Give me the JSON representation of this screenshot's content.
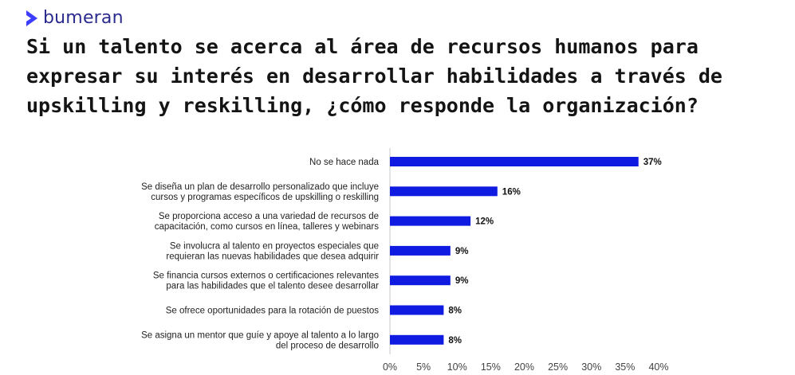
{
  "brand": {
    "name": "bumeran",
    "accent": "#3d3dff",
    "logo_icon": "chevron-logo-icon"
  },
  "title": "Si un talento se acerca al área de recursos humanos para expresar su interés en desarrollar habilidades a través de upskilling y reskilling, ¿cómo responde la organización?",
  "chart_data": {
    "type": "bar",
    "orientation": "horizontal",
    "bar_color": "#0f1be0",
    "categories": [
      [
        "No se hace nada"
      ],
      [
        "Se diseña un plan de desarrollo personalizado que incluye",
        "cursos y programas específicos de upskilling o reskilling"
      ],
      [
        "Se proporciona acceso a una variedad de recursos de",
        "capacitación, como cursos en línea, talleres y webinars"
      ],
      [
        "Se involucra al talento en proyectos especiales que",
        "requieran las nuevas habilidades que desea adquirir"
      ],
      [
        "Se financia cursos externos o certificaciones relevantes",
        "para las habilidades que el talento desee desarrollar"
      ],
      [
        "Se ofrece oportunidades para la rotación de puestos"
      ],
      [
        "Se asigna un mentor que guíe y apoye al talento a lo largo",
        "del proceso de desarrollo"
      ]
    ],
    "values": [
      37,
      16,
      12,
      9,
      9,
      8,
      8
    ],
    "value_labels": [
      "37%",
      "16%",
      "12%",
      "9%",
      "9%",
      "8%",
      "8%"
    ],
    "xlim": [
      0,
      40
    ],
    "xticks": [
      "0%",
      "5%",
      "10%",
      "15%",
      "20%",
      "25%",
      "30%",
      "35%",
      "40%"
    ],
    "grid": false,
    "legend": "none"
  }
}
